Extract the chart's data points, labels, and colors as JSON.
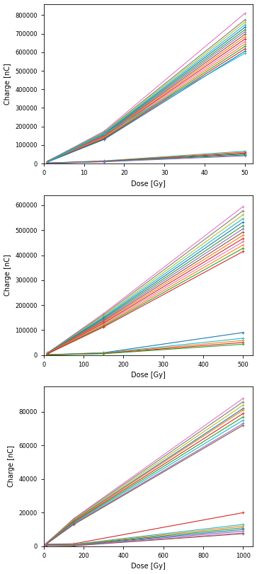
{
  "plots": [
    {
      "xlabel": "Dose [Gy]",
      "ylabel": "Charge [nC]",
      "xlim": [
        0,
        52
      ],
      "ylim": [
        0,
        860000
      ],
      "xticks": [
        0,
        10,
        20,
        30,
        40,
        50
      ],
      "yticks": [
        0,
        100000,
        200000,
        300000,
        400000,
        500000,
        600000,
        700000,
        800000
      ],
      "series": [
        {
          "doses": [
            1,
            15,
            50
          ],
          "charges": [
            14000,
            175000,
            810000
          ],
          "color": "#e377c2",
          "marker": "+"
        },
        {
          "doses": [
            1,
            15,
            50
          ],
          "charges": [
            13500,
            170000,
            775000
          ],
          "color": "#7f7f7f",
          "marker": "+"
        },
        {
          "doses": [
            1,
            15,
            50
          ],
          "charges": [
            13000,
            166000,
            762000
          ],
          "color": "#bcbd22",
          "marker": "+"
        },
        {
          "doses": [
            1,
            15,
            50
          ],
          "charges": [
            12800,
            163000,
            748000
          ],
          "color": "#17becf",
          "marker": "+"
        },
        {
          "doses": [
            1,
            15,
            50
          ],
          "charges": [
            12500,
            160000,
            735000
          ],
          "color": "#1f77b4",
          "marker": "+"
        },
        {
          "doses": [
            1,
            15,
            50
          ],
          "charges": [
            12200,
            157000,
            722000
          ],
          "color": "#2ca02c",
          "marker": "+"
        },
        {
          "doses": [
            1,
            15,
            50
          ],
          "charges": [
            11900,
            154000,
            710000
          ],
          "color": "#9467bd",
          "marker": "+"
        },
        {
          "doses": [
            1,
            15,
            50
          ],
          "charges": [
            11600,
            151000,
            697000
          ],
          "color": "#8c564b",
          "marker": "+"
        },
        {
          "doses": [
            1,
            15,
            50
          ],
          "charges": [
            11300,
            148000,
            684000
          ],
          "color": "#ff7f0e",
          "marker": "+"
        },
        {
          "doses": [
            1,
            15,
            50
          ],
          "charges": [
            11000,
            145000,
            671000
          ],
          "color": "#d62728",
          "marker": "+"
        },
        {
          "doses": [
            1,
            15,
            50
          ],
          "charges": [
            10700,
            142000,
            658000
          ],
          "color": "#e377c2",
          "marker": "+"
        },
        {
          "doses": [
            1,
            15,
            50
          ],
          "charges": [
            10400,
            139000,
            645000
          ],
          "color": "#ff7f0e",
          "marker": "+"
        },
        {
          "doses": [
            1,
            15,
            50
          ],
          "charges": [
            10100,
            136000,
            632000
          ],
          "color": "#2ca02c",
          "marker": "+"
        },
        {
          "doses": [
            1,
            15,
            50
          ],
          "charges": [
            9800,
            133000,
            619000
          ],
          "color": "#d62728",
          "marker": "+"
        },
        {
          "doses": [
            1,
            15,
            50
          ],
          "charges": [
            9500,
            130000,
            606000
          ],
          "color": "#1f77b4",
          "marker": "+"
        },
        {
          "doses": [
            1,
            15,
            50
          ],
          "charges": [
            9200,
            160000,
            595000
          ],
          "color": "#17becf",
          "marker": "+"
        },
        {
          "doses": [
            1,
            15,
            50
          ],
          "charges": [
            3500,
            15000,
            67000
          ],
          "color": "#17becf",
          "marker": "+"
        },
        {
          "doses": [
            1,
            15,
            50
          ],
          "charges": [
            3200,
            14000,
            62000
          ],
          "color": "#ff7f0e",
          "marker": "+"
        },
        {
          "doses": [
            1,
            15,
            50
          ],
          "charges": [
            2900,
            13000,
            57000
          ],
          "color": "#d62728",
          "marker": "+"
        },
        {
          "doses": [
            1,
            15,
            50
          ],
          "charges": [
            2600,
            12000,
            52000
          ],
          "color": "#1f77b4",
          "marker": "+"
        },
        {
          "doses": [
            1,
            15,
            50
          ],
          "charges": [
            2300,
            11000,
            47000
          ],
          "color": "#2ca02c",
          "marker": "+"
        },
        {
          "doses": [
            1,
            15,
            50
          ],
          "charges": [
            2000,
            10000,
            42000
          ],
          "color": "#9467bd",
          "marker": "+"
        }
      ]
    },
    {
      "xlabel": "Dose [Gy]",
      "ylabel": "Charge [nC]",
      "xlim": [
        0,
        525
      ],
      "ylim": [
        0,
        640000
      ],
      "xticks": [
        0,
        100,
        200,
        300,
        400,
        500
      ],
      "yticks": [
        0,
        100000,
        200000,
        300000,
        400000,
        500000,
        600000
      ],
      "series": [
        {
          "doses": [
            10,
            150,
            500
          ],
          "charges": [
            9000,
            166000,
            595000
          ],
          "color": "#e377c2",
          "marker": "+"
        },
        {
          "doses": [
            10,
            150,
            500
          ],
          "charges": [
            8600,
            161000,
            578000
          ],
          "color": "#7f7f7f",
          "marker": "+"
        },
        {
          "doses": [
            10,
            150,
            500
          ],
          "charges": [
            8200,
            156000,
            562000
          ],
          "color": "#bcbd22",
          "marker": "+"
        },
        {
          "doses": [
            10,
            150,
            500
          ],
          "charges": [
            7900,
            152000,
            547000
          ],
          "color": "#17becf",
          "marker": "+"
        },
        {
          "doses": [
            10,
            150,
            500
          ],
          "charges": [
            7600,
            148000,
            533000
          ],
          "color": "#1f77b4",
          "marker": "+"
        },
        {
          "doses": [
            10,
            150,
            500
          ],
          "charges": [
            7300,
            144000,
            519000
          ],
          "color": "#2ca02c",
          "marker": "+"
        },
        {
          "doses": [
            10,
            150,
            500
          ],
          "charges": [
            7000,
            140000,
            506000
          ],
          "color": "#9467bd",
          "marker": "+"
        },
        {
          "doses": [
            10,
            150,
            500
          ],
          "charges": [
            6700,
            136000,
            493000
          ],
          "color": "#8c564b",
          "marker": "+"
        },
        {
          "doses": [
            10,
            150,
            500
          ],
          "charges": [
            6400,
            132000,
            480000
          ],
          "color": "#ff7f0e",
          "marker": "+"
        },
        {
          "doses": [
            10,
            150,
            500
          ],
          "charges": [
            6100,
            128000,
            467000
          ],
          "color": "#d62728",
          "marker": "+"
        },
        {
          "doses": [
            10,
            150,
            500
          ],
          "charges": [
            5800,
            124000,
            454000
          ],
          "color": "#e377c2",
          "marker": "+"
        },
        {
          "doses": [
            10,
            150,
            500
          ],
          "charges": [
            5500,
            120000,
            441000
          ],
          "color": "#ff7f0e",
          "marker": "+"
        },
        {
          "doses": [
            10,
            150,
            500
          ],
          "charges": [
            5200,
            116000,
            428000
          ],
          "color": "#2ca02c",
          "marker": "+"
        },
        {
          "doses": [
            10,
            150,
            500
          ],
          "charges": [
            4900,
            112000,
            415000
          ],
          "color": "#d62728",
          "marker": "+"
        },
        {
          "doses": [
            10,
            150,
            500
          ],
          "charges": [
            900,
            9000,
            90000
          ],
          "color": "#1f77b4",
          "marker": "+"
        },
        {
          "doses": [
            10,
            150,
            500
          ],
          "charges": [
            800,
            8000,
            67000
          ],
          "color": "#17becf",
          "marker": "+"
        },
        {
          "doses": [
            10,
            150,
            500
          ],
          "charges": [
            700,
            7000,
            58000
          ],
          "color": "#ff7f0e",
          "marker": "+"
        },
        {
          "doses": [
            10,
            150,
            500
          ],
          "charges": [
            600,
            6000,
            50000
          ],
          "color": "#d62728",
          "marker": "+"
        },
        {
          "doses": [
            10,
            150,
            500
          ],
          "charges": [
            500,
            5000,
            43000
          ],
          "color": "#2ca02c",
          "marker": "+"
        }
      ]
    },
    {
      "xlabel": "Dose [Gy]",
      "ylabel": "Charge [nC]",
      "xlim": [
        0,
        1050
      ],
      "ylim": [
        0,
        95000
      ],
      "xticks": [
        0,
        200,
        400,
        600,
        800,
        1000
      ],
      "yticks": [
        0,
        20000,
        40000,
        60000,
        80000
      ],
      "series": [
        {
          "doses": [
            10,
            150,
            1000
          ],
          "charges": [
            1500,
            16500,
            88000
          ],
          "color": "#e377c2",
          "marker": "+"
        },
        {
          "doses": [
            10,
            150,
            1000
          ],
          "charges": [
            1450,
            16100,
            86000
          ],
          "color": "#7f7f7f",
          "marker": "+"
        },
        {
          "doses": [
            10,
            150,
            1000
          ],
          "charges": [
            1400,
            15700,
            84000
          ],
          "color": "#bcbd22",
          "marker": "+"
        },
        {
          "doses": [
            10,
            150,
            1000
          ],
          "charges": [
            1350,
            15300,
            82000
          ],
          "color": "#1f77b4",
          "marker": "+"
        },
        {
          "doses": [
            10,
            150,
            1000
          ],
          "charges": [
            1300,
            14900,
            81000
          ],
          "color": "#ff7f0e",
          "marker": "+"
        },
        {
          "doses": [
            10,
            150,
            1000
          ],
          "charges": [
            1250,
            14500,
            79000
          ],
          "color": "#d62728",
          "marker": "+"
        },
        {
          "doses": [
            10,
            150,
            1000
          ],
          "charges": [
            1200,
            14100,
            77000
          ],
          "color": "#2ca02c",
          "marker": "+"
        },
        {
          "doses": [
            10,
            150,
            1000
          ],
          "charges": [
            1150,
            13700,
            75000
          ],
          "color": "#17becf",
          "marker": "+"
        },
        {
          "doses": [
            10,
            150,
            1000
          ],
          "charges": [
            1100,
            13300,
            73000
          ],
          "color": "#9467bd",
          "marker": "+"
        },
        {
          "doses": [
            10,
            150,
            1000
          ],
          "charges": [
            1050,
            12900,
            72000
          ],
          "color": "#8c564b",
          "marker": "+"
        },
        {
          "doses": [
            10,
            150,
            1000
          ],
          "charges": [
            1200,
            1500,
            20000
          ],
          "color": "#d62728",
          "marker": "+"
        },
        {
          "doses": [
            10,
            150,
            1000
          ],
          "charges": [
            1100,
            1200,
            13000
          ],
          "color": "#17becf",
          "marker": "+"
        },
        {
          "doses": [
            10,
            150,
            1000
          ],
          "charges": [
            1000,
            1000,
            12000
          ],
          "color": "#ff7f0e",
          "marker": "+"
        },
        {
          "doses": [
            10,
            150,
            1000
          ],
          "charges": [
            900,
            800,
            11000
          ],
          "color": "#2ca02c",
          "marker": "+"
        },
        {
          "doses": [
            10,
            150,
            1000
          ],
          "charges": [
            800,
            600,
            10000
          ],
          "color": "#1f77b4",
          "marker": "+"
        },
        {
          "doses": [
            10,
            150,
            1000
          ],
          "charges": [
            700,
            500,
            9000
          ],
          "color": "#9467bd",
          "marker": "+"
        },
        {
          "doses": [
            10,
            150,
            1000
          ],
          "charges": [
            600,
            400,
            8000
          ],
          "color": "#e377c2",
          "marker": "+"
        },
        {
          "doses": [
            10,
            150,
            1000
          ],
          "charges": [
            500,
            300,
            7500
          ],
          "color": "#8c564b",
          "marker": "+"
        }
      ]
    }
  ],
  "fig_bgcolor": "#ffffff",
  "axes_bgcolor": "#ffffff",
  "linewidth": 0.8,
  "markersize": 3.0
}
